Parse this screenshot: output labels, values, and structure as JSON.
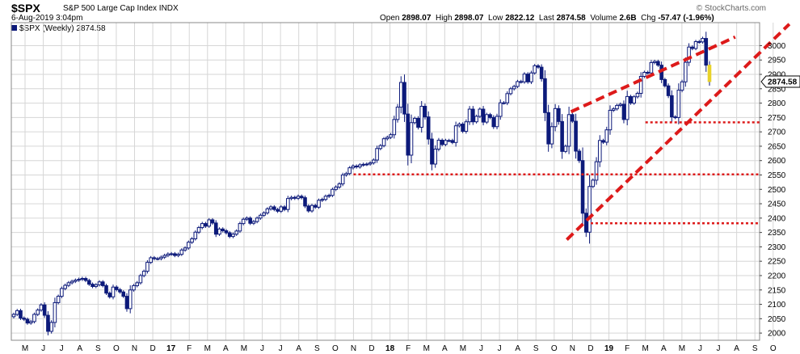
{
  "header": {
    "symbol": "$SPX",
    "description": "S&P 500 Large Cap Index INDX",
    "date_time": "6-Aug-2019 3:04pm",
    "watermark": "© StockCharts.com",
    "ohlc": {
      "open_label": "Open",
      "open": "2898.07",
      "high_label": "High",
      "high": "2898.07",
      "low_label": "Low",
      "low": "2822.12",
      "last_label": "Last",
      "last": "2874.58",
      "volume_label": "Volume",
      "volume": "2.6B",
      "chg_label": "Chg",
      "chg": "-57.47 (-1.96%)"
    },
    "legend": "$SPX (Weekly) 2874.58"
  },
  "colors": {
    "candle": "#0d1a7a",
    "last_candle": "#e8d22a",
    "trendline": "#dd1a1a",
    "grid": "#d6d6d6",
    "price_tag_border": "#000000"
  },
  "chart_data": {
    "type": "candlestick",
    "interval": "weekly",
    "series_name": "$SPX (Weekly)",
    "ylim": [
      1975,
      3080
    ],
    "y_ticks": [
      2000,
      2050,
      2100,
      2150,
      2200,
      2250,
      2300,
      2350,
      2400,
      2450,
      2500,
      2550,
      2600,
      2650,
      2700,
      2750,
      2800,
      2850,
      2900,
      2950,
      3000
    ],
    "x_tick_labels": [
      "M",
      "J",
      "J",
      "A",
      "S",
      "O",
      "N",
      "D",
      "17",
      "F",
      "M",
      "A",
      "M",
      "J",
      "J",
      "A",
      "S",
      "O",
      "N",
      "D",
      "18",
      "F",
      "M",
      "A",
      "M",
      "J",
      "J",
      "A",
      "S",
      "O",
      "N",
      "D",
      "19",
      "F",
      "M",
      "A",
      "M",
      "J",
      "J",
      "A",
      "S",
      "O"
    ],
    "x_tick_bold": [
      "17",
      "18",
      "19"
    ],
    "start_month": "2016-05",
    "end_month": "2019-10",
    "last_price_label": "2874.58",
    "weekly_closes": [
      2065,
      2078,
      2052,
      2048,
      2035,
      2040,
      2065,
      2080,
      2098,
      2062,
      2006,
      2037,
      2106,
      2128,
      2155,
      2166,
      2175,
      2180,
      2184,
      2187,
      2190,
      2183,
      2170,
      2162,
      2168,
      2178,
      2165,
      2139,
      2126,
      2160,
      2151,
      2143,
      2128,
      2085,
      2150,
      2165,
      2175,
      2200,
      2215,
      2246,
      2262,
      2259,
      2259,
      2264,
      2270,
      2275,
      2276,
      2270,
      2274,
      2289,
      2296,
      2316,
      2328,
      2351,
      2367,
      2381,
      2372,
      2394,
      2383,
      2344,
      2362,
      2356,
      2349,
      2336,
      2344,
      2355,
      2381,
      2396,
      2400,
      2382,
      2388,
      2400,
      2410,
      2418,
      2432,
      2439,
      2430,
      2424,
      2439,
      2430,
      2468,
      2472,
      2469,
      2476,
      2471,
      2442,
      2425,
      2444,
      2438,
      2462,
      2465,
      2476,
      2479,
      2500,
      2508,
      2519,
      2550,
      2555,
      2575,
      2581,
      2578,
      2585,
      2587,
      2588,
      2592,
      2602,
      2642,
      2652,
      2676,
      2681,
      2690,
      2743,
      2786,
      2872,
      2762,
      2619,
      2732,
      2747,
      2716,
      2789,
      2752,
      2675,
      2588,
      2640,
      2671,
      2656,
      2670,
      2670,
      2663,
      2721,
      2727,
      2702,
      2735,
      2779,
      2735,
      2754,
      2779,
      2734,
      2760,
      2750,
      2718,
      2754,
      2801,
      2801,
      2833,
      2850,
      2858,
      2875,
      2874,
      2901,
      2874,
      2905,
      2930,
      2925,
      2885,
      2767,
      2658,
      2718,
      2781,
      2736,
      2632,
      2650,
      2760,
      2737,
      2633,
      2600,
      2417,
      2351,
      2510,
      2532,
      2596,
      2670,
      2664,
      2707,
      2775,
      2780,
      2792,
      2796,
      2743,
      2823,
      2800,
      2822,
      2834,
      2893,
      2907,
      2905,
      2941,
      2945,
      2932,
      2882,
      2860,
      2826,
      2752,
      2750,
      2845,
      2874,
      2942,
      2995,
      2990,
      3014,
      3013,
      3025,
      2932,
      2875
    ],
    "trendlines": [
      {
        "style": "dashed-thick",
        "from": {
          "date": "2018-10-29",
          "price": 2770
        },
        "to": {
          "date": "2019-07-29",
          "price": 3030
        }
      },
      {
        "style": "dashed-thick",
        "from": {
          "date": "2018-10-22",
          "price": 2325
        },
        "to": {
          "date": "2019-10-28",
          "price": 3075
        }
      }
    ],
    "support_lines": [
      {
        "price": 2552,
        "from": "2017-11",
        "to": "2019-11"
      },
      {
        "price": 2733,
        "from": "2019-03",
        "to": "2019-11"
      },
      {
        "price": 2382,
        "from": "2018-12",
        "to": "2019-11"
      }
    ]
  }
}
